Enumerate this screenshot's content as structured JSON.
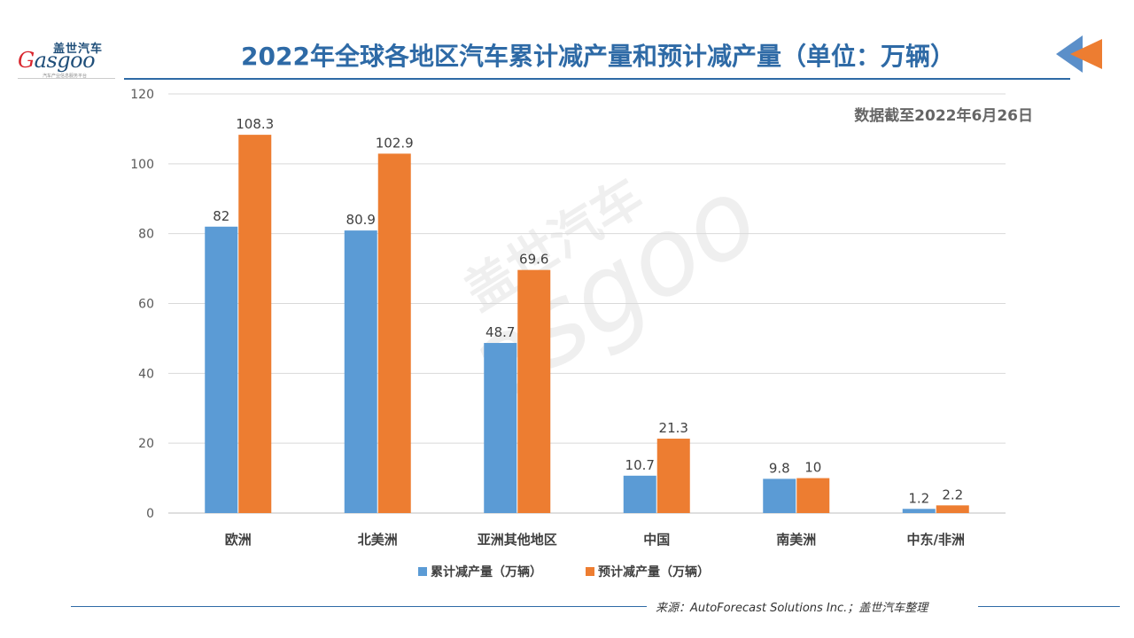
{
  "logo": {
    "cn": "盖世汽车",
    "en_initial": "G",
    "en_rest": "asgoo",
    "sub": "汽车产业信息服务平台"
  },
  "header": {
    "title": "2022年全球各地区汽车累计减产量和预计减产量（单位：万辆）"
  },
  "note": "数据截至2022年6月26日",
  "watermark": {
    "cn": "盖世汽车",
    "en": "asgoo"
  },
  "source": "来源：AutoForecast Solutions Inc.；盖世汽车整理",
  "colors": {
    "series1": "#5b9bd5",
    "series2": "#ed7d31",
    "title": "#2e6aa6"
  },
  "chart_data": {
    "type": "bar",
    "categories": [
      "欧洲",
      "北美洲",
      "亚洲其他地区",
      "中国",
      "南美洲",
      "中东/非洲"
    ],
    "series": [
      {
        "name": "累计减产量（万辆）",
        "values": [
          82,
          80.9,
          48.7,
          10.7,
          9.8,
          1.2
        ]
      },
      {
        "name": "预计减产量（万辆）",
        "values": [
          108.3,
          102.9,
          69.6,
          21.3,
          10,
          2.2
        ]
      }
    ],
    "yticks": [
      0,
      20,
      40,
      60,
      80,
      100,
      120
    ],
    "ylim": [
      0,
      120
    ],
    "grid": true,
    "legend": "bottom"
  }
}
